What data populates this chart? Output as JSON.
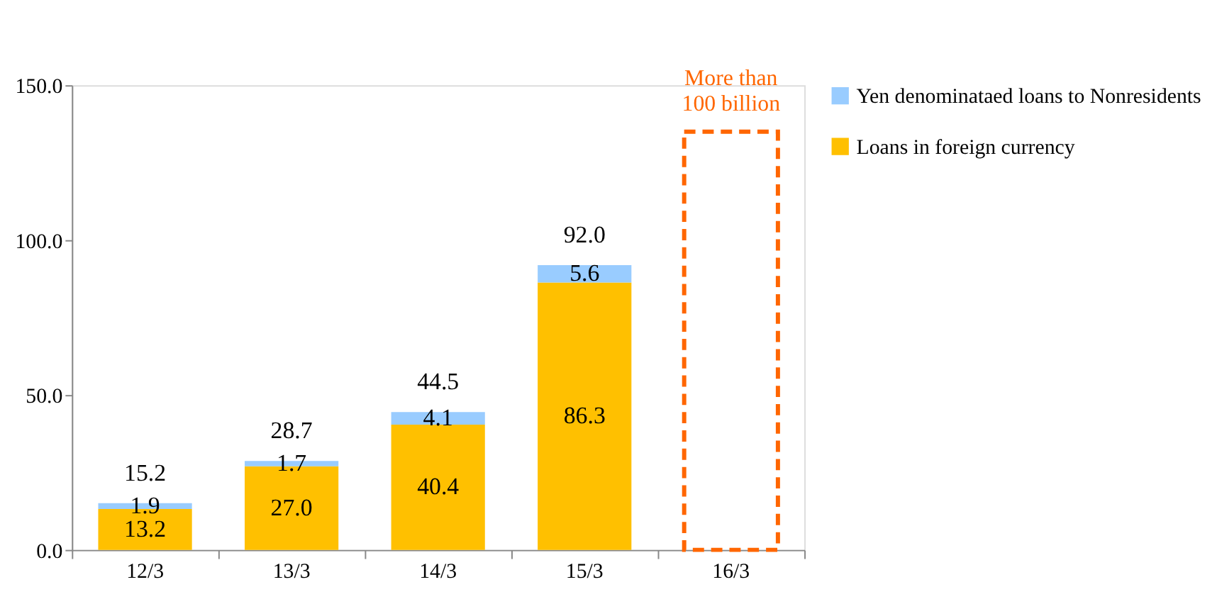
{
  "chart_data": {
    "type": "bar",
    "stacked": true,
    "categories": [
      "12/3",
      "13/3",
      "14/3",
      "15/3",
      "16/3"
    ],
    "series": [
      {
        "name": "Loans in foreign currency",
        "color": "#ffc000",
        "values": [
          13.2,
          27.0,
          40.4,
          86.3,
          null
        ],
        "value_labels": [
          "13.2",
          "27.0",
          "40.4",
          "86.3",
          null
        ]
      },
      {
        "name": "Yen denominataed loans to Nonresidents",
        "color": "#99ccff",
        "values": [
          1.9,
          1.7,
          4.1,
          5.6,
          null
        ],
        "value_labels": [
          "1.9",
          "1.7",
          "4.1",
          "5.6",
          null
        ]
      },
      {
        "color": "#ff6600",
        "line_style": "dashed",
        "values": [
          null,
          null,
          null,
          null,
          135
        ]
      }
    ],
    "totals": [
      "15.2",
      "28.7",
      "44.5",
      "92.0",
      null
    ],
    "ylim": [
      0,
      150
    ],
    "yticks": [
      {
        "value": 0,
        "label": "0.0"
      },
      {
        "value": 50,
        "label": "50.0"
      },
      {
        "value": 100,
        "label": "100.0"
      },
      {
        "value": 150,
        "label": "150.0"
      }
    ],
    "grid": false,
    "legend": "right",
    "annotations": [
      "More than\n100 billion"
    ]
  }
}
